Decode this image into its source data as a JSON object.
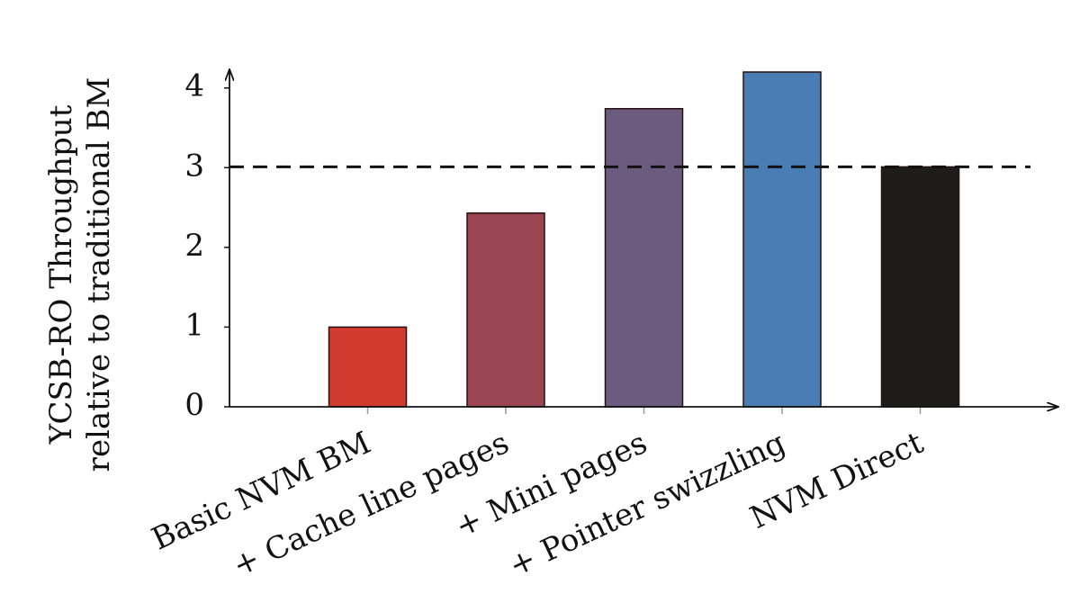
{
  "chart_data": {
    "type": "bar",
    "y_label": [
      "YCSB-RO Throughput",
      "relative to traditional BM"
    ],
    "categories": [
      "Basic NVM BM",
      "+ Cache line pages",
      "+ Mini pages",
      "+ Pointer swizzling",
      "NVM Direct"
    ],
    "values": [
      1.0,
      2.43,
      3.74,
      4.2,
      3.01
    ],
    "colors": [
      "#d13a2f",
      "#9b4452",
      "#6b5b7e",
      "#4a7db4",
      "#1f1c1c"
    ],
    "reference_line": 3.01,
    "ylim": [
      0,
      4.2
    ],
    "yticks": [
      0,
      1,
      2,
      3,
      4
    ],
    "grid": false
  }
}
